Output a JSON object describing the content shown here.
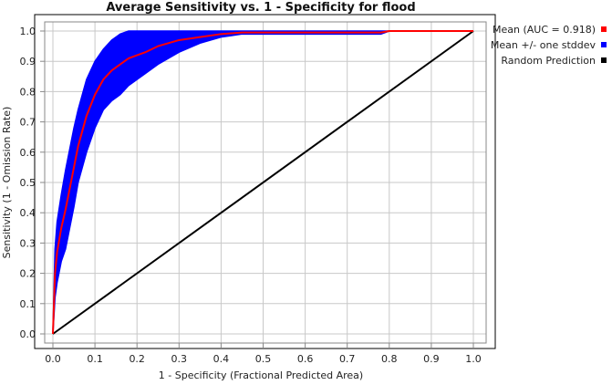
{
  "chart_data": {
    "type": "line",
    "title": "Average Sensitivity vs. 1 - Specificity for flood",
    "xlabel": "1 - Specificity (Fractional Predicted Area)",
    "ylabel": "Sensitivity (1 - Omission Rate)",
    "xlim": [
      0,
      1
    ],
    "ylim": [
      0,
      1
    ],
    "xticks": [
      "0.0",
      "0.1",
      "0.2",
      "0.3",
      "0.4",
      "0.5",
      "0.6",
      "0.7",
      "0.8",
      "0.9",
      "1.0"
    ],
    "yticks": [
      "0.0",
      "0.1",
      "0.2",
      "0.3",
      "0.4",
      "0.5",
      "0.6",
      "0.7",
      "0.8",
      "0.9",
      "1.0"
    ],
    "grid": true,
    "legend_position": "right",
    "legend": [
      {
        "label": "Mean (AUC = 0.918)",
        "color": "#ff0000"
      },
      {
        "label": "Mean +/- one stddev",
        "color": "#0000ff"
      },
      {
        "label": "Random Prediction",
        "color": "#000000"
      }
    ],
    "series": [
      {
        "name": "Mean (AUC = 0.918)",
        "color": "#ff0000",
        "x": [
          0,
          0.005,
          0.01,
          0.02,
          0.03,
          0.04,
          0.05,
          0.06,
          0.07,
          0.08,
          0.1,
          0.12,
          0.14,
          0.16,
          0.18,
          0.2,
          0.22,
          0.25,
          0.3,
          0.35,
          0.4,
          0.45,
          0.5,
          0.6,
          0.7,
          0.78,
          0.8,
          0.9,
          1.0
        ],
        "y": [
          0,
          0.2,
          0.27,
          0.35,
          0.41,
          0.48,
          0.55,
          0.62,
          0.67,
          0.72,
          0.79,
          0.84,
          0.87,
          0.89,
          0.91,
          0.92,
          0.93,
          0.95,
          0.97,
          0.98,
          0.99,
          0.995,
          0.995,
          0.995,
          0.995,
          0.995,
          1.0,
          1.0,
          1.0
        ]
      },
      {
        "name": "Mean +/- one stddev",
        "color": "#0000ff",
        "x": [
          0,
          0.005,
          0.01,
          0.02,
          0.03,
          0.04,
          0.05,
          0.06,
          0.07,
          0.08,
          0.1,
          0.12,
          0.14,
          0.16,
          0.18,
          0.2,
          0.22,
          0.25,
          0.3,
          0.35,
          0.4,
          0.45,
          0.5,
          0.6,
          0.7,
          0.78,
          0.8,
          0.9,
          1.0
        ],
        "upper": [
          0,
          0.28,
          0.37,
          0.46,
          0.54,
          0.61,
          0.68,
          0.74,
          0.79,
          0.84,
          0.9,
          0.94,
          0.97,
          0.99,
          1.0,
          1.0,
          1.0,
          1.0,
          1.0,
          1.0,
          1.0,
          1.0,
          1.0,
          1.0,
          1.0,
          1.0,
          1.0,
          1.0,
          1.0
        ],
        "lower": [
          0,
          0.12,
          0.17,
          0.24,
          0.28,
          0.35,
          0.42,
          0.5,
          0.55,
          0.6,
          0.68,
          0.74,
          0.77,
          0.79,
          0.82,
          0.84,
          0.86,
          0.89,
          0.93,
          0.96,
          0.98,
          0.99,
          0.99,
          0.99,
          0.99,
          0.99,
          1.0,
          1.0,
          1.0
        ]
      },
      {
        "name": "Random Prediction",
        "color": "#000000",
        "x": [
          0,
          1
        ],
        "y": [
          0,
          1
        ]
      }
    ]
  }
}
